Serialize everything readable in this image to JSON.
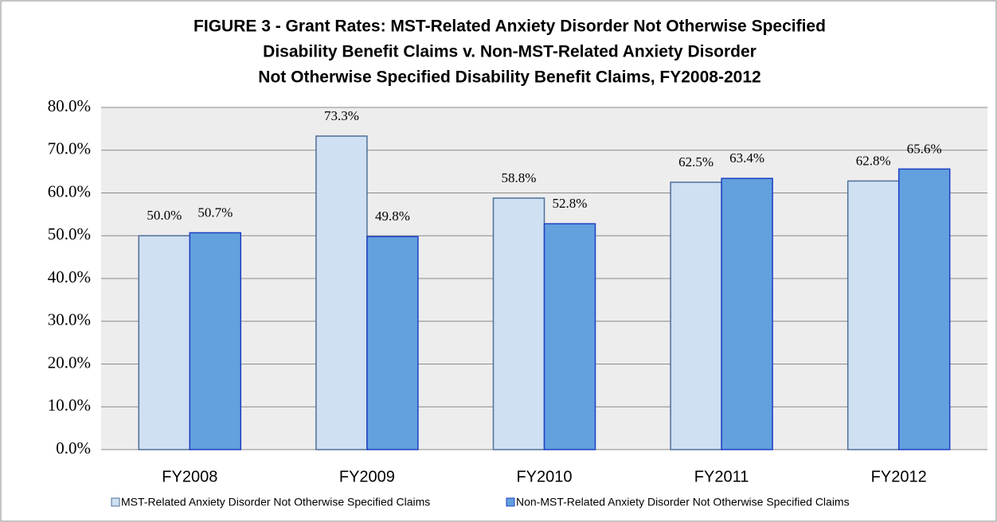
{
  "chart_data": {
    "type": "bar",
    "title": [
      "FIGURE 3 - Grant Rates: MST-Related Anxiety Disorder Not Otherwise Specified",
      "Disability Benefit Claims v. Non-MST-Related Anxiety Disorder",
      "Not Otherwise Specified Disability Benefit  Claims,  FY2008-2012"
    ],
    "categories": [
      "FY2008",
      "FY2009",
      "FY2010",
      "FY2011",
      "FY2012"
    ],
    "series": [
      {
        "name": "MST-Related Anxiety Disorder Not Otherwise Specified Claims",
        "color": "#cfe0f3",
        "stroke": "#4f6f96",
        "values": [
          50.0,
          73.3,
          58.8,
          62.5,
          62.8
        ],
        "value_labels": [
          "50.0%",
          "73.3%",
          "58.8%",
          "62.5%",
          "62.8%"
        ]
      },
      {
        "name": "Non-MST-Related Anxiety Disorder Not Otherwise Specified Claims",
        "color": "#62a0de",
        "stroke": "#1f3fc4",
        "values": [
          50.7,
          49.8,
          52.8,
          63.4,
          65.6
        ],
        "value_labels": [
          "50.7%",
          "49.8%",
          "52.8%",
          "63.4%",
          "65.6%"
        ]
      }
    ],
    "ylim": [
      0,
      80
    ],
    "yticks": [
      {
        "value": 0,
        "label": "0.0%"
      },
      {
        "value": 10,
        "label": "10.0%"
      },
      {
        "value": 20,
        "label": "20.0%"
      },
      {
        "value": 30,
        "label": "30.0%"
      },
      {
        "value": 40,
        "label": "40.0%"
      },
      {
        "value": 50,
        "label": "50.0%"
      },
      {
        "value": 60,
        "label": "60.0%"
      },
      {
        "value": 70,
        "label": "70.0%"
      },
      {
        "value": 80,
        "label": "80.0%"
      }
    ],
    "grid": true,
    "legend": "bottom"
  }
}
